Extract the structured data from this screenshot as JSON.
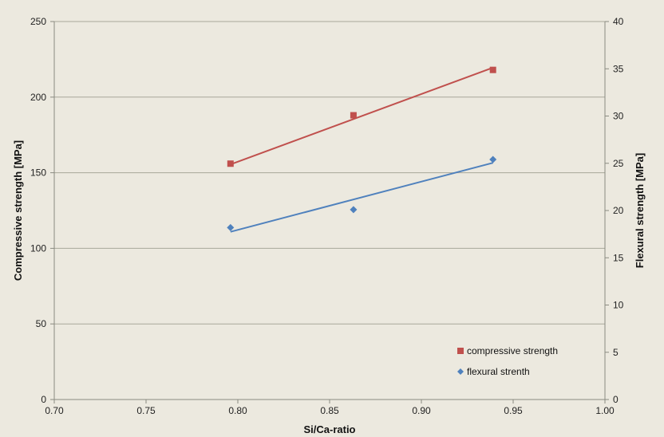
{
  "chart_data": {
    "type": "scatter",
    "xlabel": "Si/Ca-ratio",
    "ylabel": "Compressive strength [MPa]",
    "y2label": "Flexural strength [MPa]",
    "xlim": [
      0.7,
      1.0
    ],
    "ylim": [
      0,
      250
    ],
    "y2lim": [
      0,
      40
    ],
    "x_ticks": [
      "0.70",
      "0.75",
      "0.80",
      "0.85",
      "0.90",
      "0.95",
      "1.00"
    ],
    "y_ticks": [
      "0",
      "50",
      "100",
      "150",
      "200",
      "250"
    ],
    "y2_ticks": [
      "0",
      "5",
      "10",
      "15",
      "20",
      "25",
      "30",
      "35",
      "40"
    ],
    "grid": "horizontal",
    "legend_position": "bottom-right",
    "series": [
      {
        "name": "compressive strength",
        "axis": "left",
        "marker": "square",
        "color": "#c0504d",
        "x": [
          0.796,
          0.863,
          0.939
        ],
        "y": [
          156,
          188,
          218
        ],
        "trendline": [
          [
            0.796,
            155.5
          ],
          [
            0.939,
            219.5
          ]
        ]
      },
      {
        "name": "flexural strenth",
        "axis": "right",
        "marker": "diamond",
        "color": "#4f81bd",
        "x": [
          0.796,
          0.863,
          0.939
        ],
        "y": [
          18.2,
          20.1,
          25.4
        ],
        "trendline": [
          [
            0.796,
            17.75
          ],
          [
            0.939,
            25.05
          ]
        ]
      }
    ]
  }
}
